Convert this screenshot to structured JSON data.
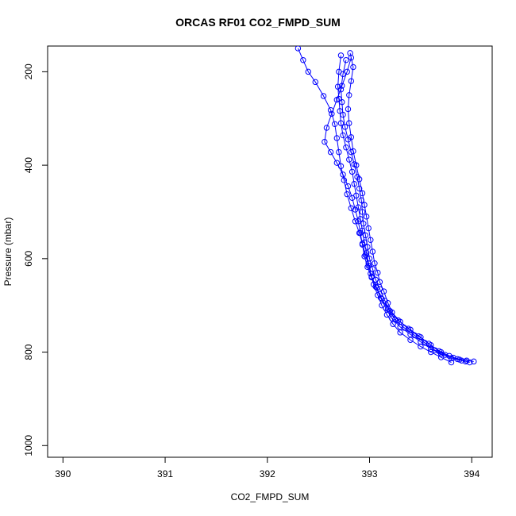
{
  "chart_data": {
    "type": "line",
    "title": "ORCAS RF01 CO2_FMPD_SUM",
    "xlabel": "CO2_FMPD_SUM",
    "ylabel": "Pressure (mbar)",
    "xlim": [
      389.85,
      394.2
    ],
    "ylim": [
      1025,
      145
    ],
    "y_reversed": true,
    "x_ticks": [
      "390",
      "391",
      "392",
      "393",
      "394"
    ],
    "y_ticks": [
      "200",
      "400",
      "600",
      "800",
      "1000"
    ],
    "marker": "open-circle",
    "grid": false,
    "legend": "none",
    "color": "#0000ff",
    "series": [
      {
        "x": [
          394.02,
          393.95,
          393.82,
          393.7,
          393.6,
          393.5,
          393.4,
          393.3,
          393.22,
          393.18,
          393.14,
          393.1,
          393.08,
          393.05,
          393.03,
          393.01,
          392.99,
          392.97,
          392.95,
          392.93,
          392.9,
          392.87,
          392.84,
          392.82,
          392.8,
          392.79,
          392.8,
          392.82,
          392.84,
          392.81
        ],
        "y": [
          820,
          818,
          812,
          800,
          785,
          768,
          752,
          735,
          715,
          695,
          670,
          650,
          630,
          610,
          585,
          560,
          535,
          510,
          485,
          460,
          430,
          400,
          370,
          340,
          310,
          280,
          250,
          220,
          190,
          160
        ]
      },
      {
        "x": [
          393.98,
          393.88,
          393.78,
          393.68,
          393.58,
          393.48,
          393.38,
          393.28,
          393.2,
          393.15,
          393.1,
          393.06,
          393.03,
          393.0,
          392.98,
          392.96,
          392.94,
          392.93,
          392.92,
          392.9,
          392.88,
          392.85,
          392.82,
          392.79,
          392.76,
          392.74,
          392.73,
          392.72,
          392.74,
          392.77
        ],
        "y": [
          822,
          816,
          808,
          798,
          782,
          766,
          750,
          732,
          712,
          690,
          665,
          645,
          622,
          600,
          575,
          550,
          525,
          500,
          475,
          450,
          425,
          398,
          372,
          345,
          318,
          292,
          265,
          238,
          205,
          175
        ]
      },
      {
        "x": [
          393.94,
          393.86,
          393.74,
          393.64,
          393.54,
          393.44,
          393.34,
          393.25,
          393.18,
          393.12,
          393.07,
          393.02,
          392.98,
          392.95,
          392.93,
          392.91,
          392.89,
          392.86,
          392.83,
          392.79,
          392.74,
          392.68,
          392.62,
          392.56,
          392.58,
          392.63,
          392.68,
          392.73,
          392.78,
          392.82
        ],
        "y": [
          820,
          815,
          806,
          796,
          780,
          764,
          748,
          730,
          708,
          686,
          662,
          640,
          618,
          595,
          570,
          545,
          520,
          495,
          470,
          445,
          420,
          395,
          372,
          350,
          320,
          290,
          260,
          230,
          200,
          170
        ]
      },
      {
        "x": [
          393.9,
          393.8,
          393.7,
          393.6,
          393.5,
          393.4,
          393.3,
          393.22,
          393.16,
          393.11,
          393.06,
          393.02,
          392.99,
          392.96,
          392.93,
          392.9,
          392.86,
          392.82,
          392.78,
          392.75,
          392.72,
          392.7,
          392.68,
          392.66,
          392.62,
          392.55,
          392.47,
          392.4,
          392.35,
          392.3
        ],
        "y": [
          818,
          813,
          804,
          793,
          778,
          762,
          746,
          728,
          706,
          684,
          660,
          638,
          615,
          592,
          568,
          545,
          520,
          492,
          462,
          432,
          402,
          372,
          342,
          312,
          282,
          252,
          222,
          200,
          175,
          150
        ]
      },
      {
        "x": [
          393.8,
          393.7,
          393.6,
          393.5,
          393.4,
          393.3,
          393.23,
          393.17,
          393.12,
          393.08,
          393.04,
          393.01,
          392.99,
          392.97,
          392.95,
          392.93,
          392.91,
          392.89,
          392.87,
          392.85,
          392.83,
          392.8,
          392.77,
          392.74,
          392.72,
          392.71,
          392.7,
          392.69,
          392.7,
          392.72
        ],
        "y": [
          822,
          811,
          800,
          788,
          774,
          758,
          740,
          720,
          700,
          678,
          655,
          632,
          610,
          588,
          565,
          540,
          515,
          490,
          465,
          440,
          414,
          388,
          362,
          336,
          310,
          284,
          258,
          232,
          200,
          165
        ]
      }
    ]
  }
}
